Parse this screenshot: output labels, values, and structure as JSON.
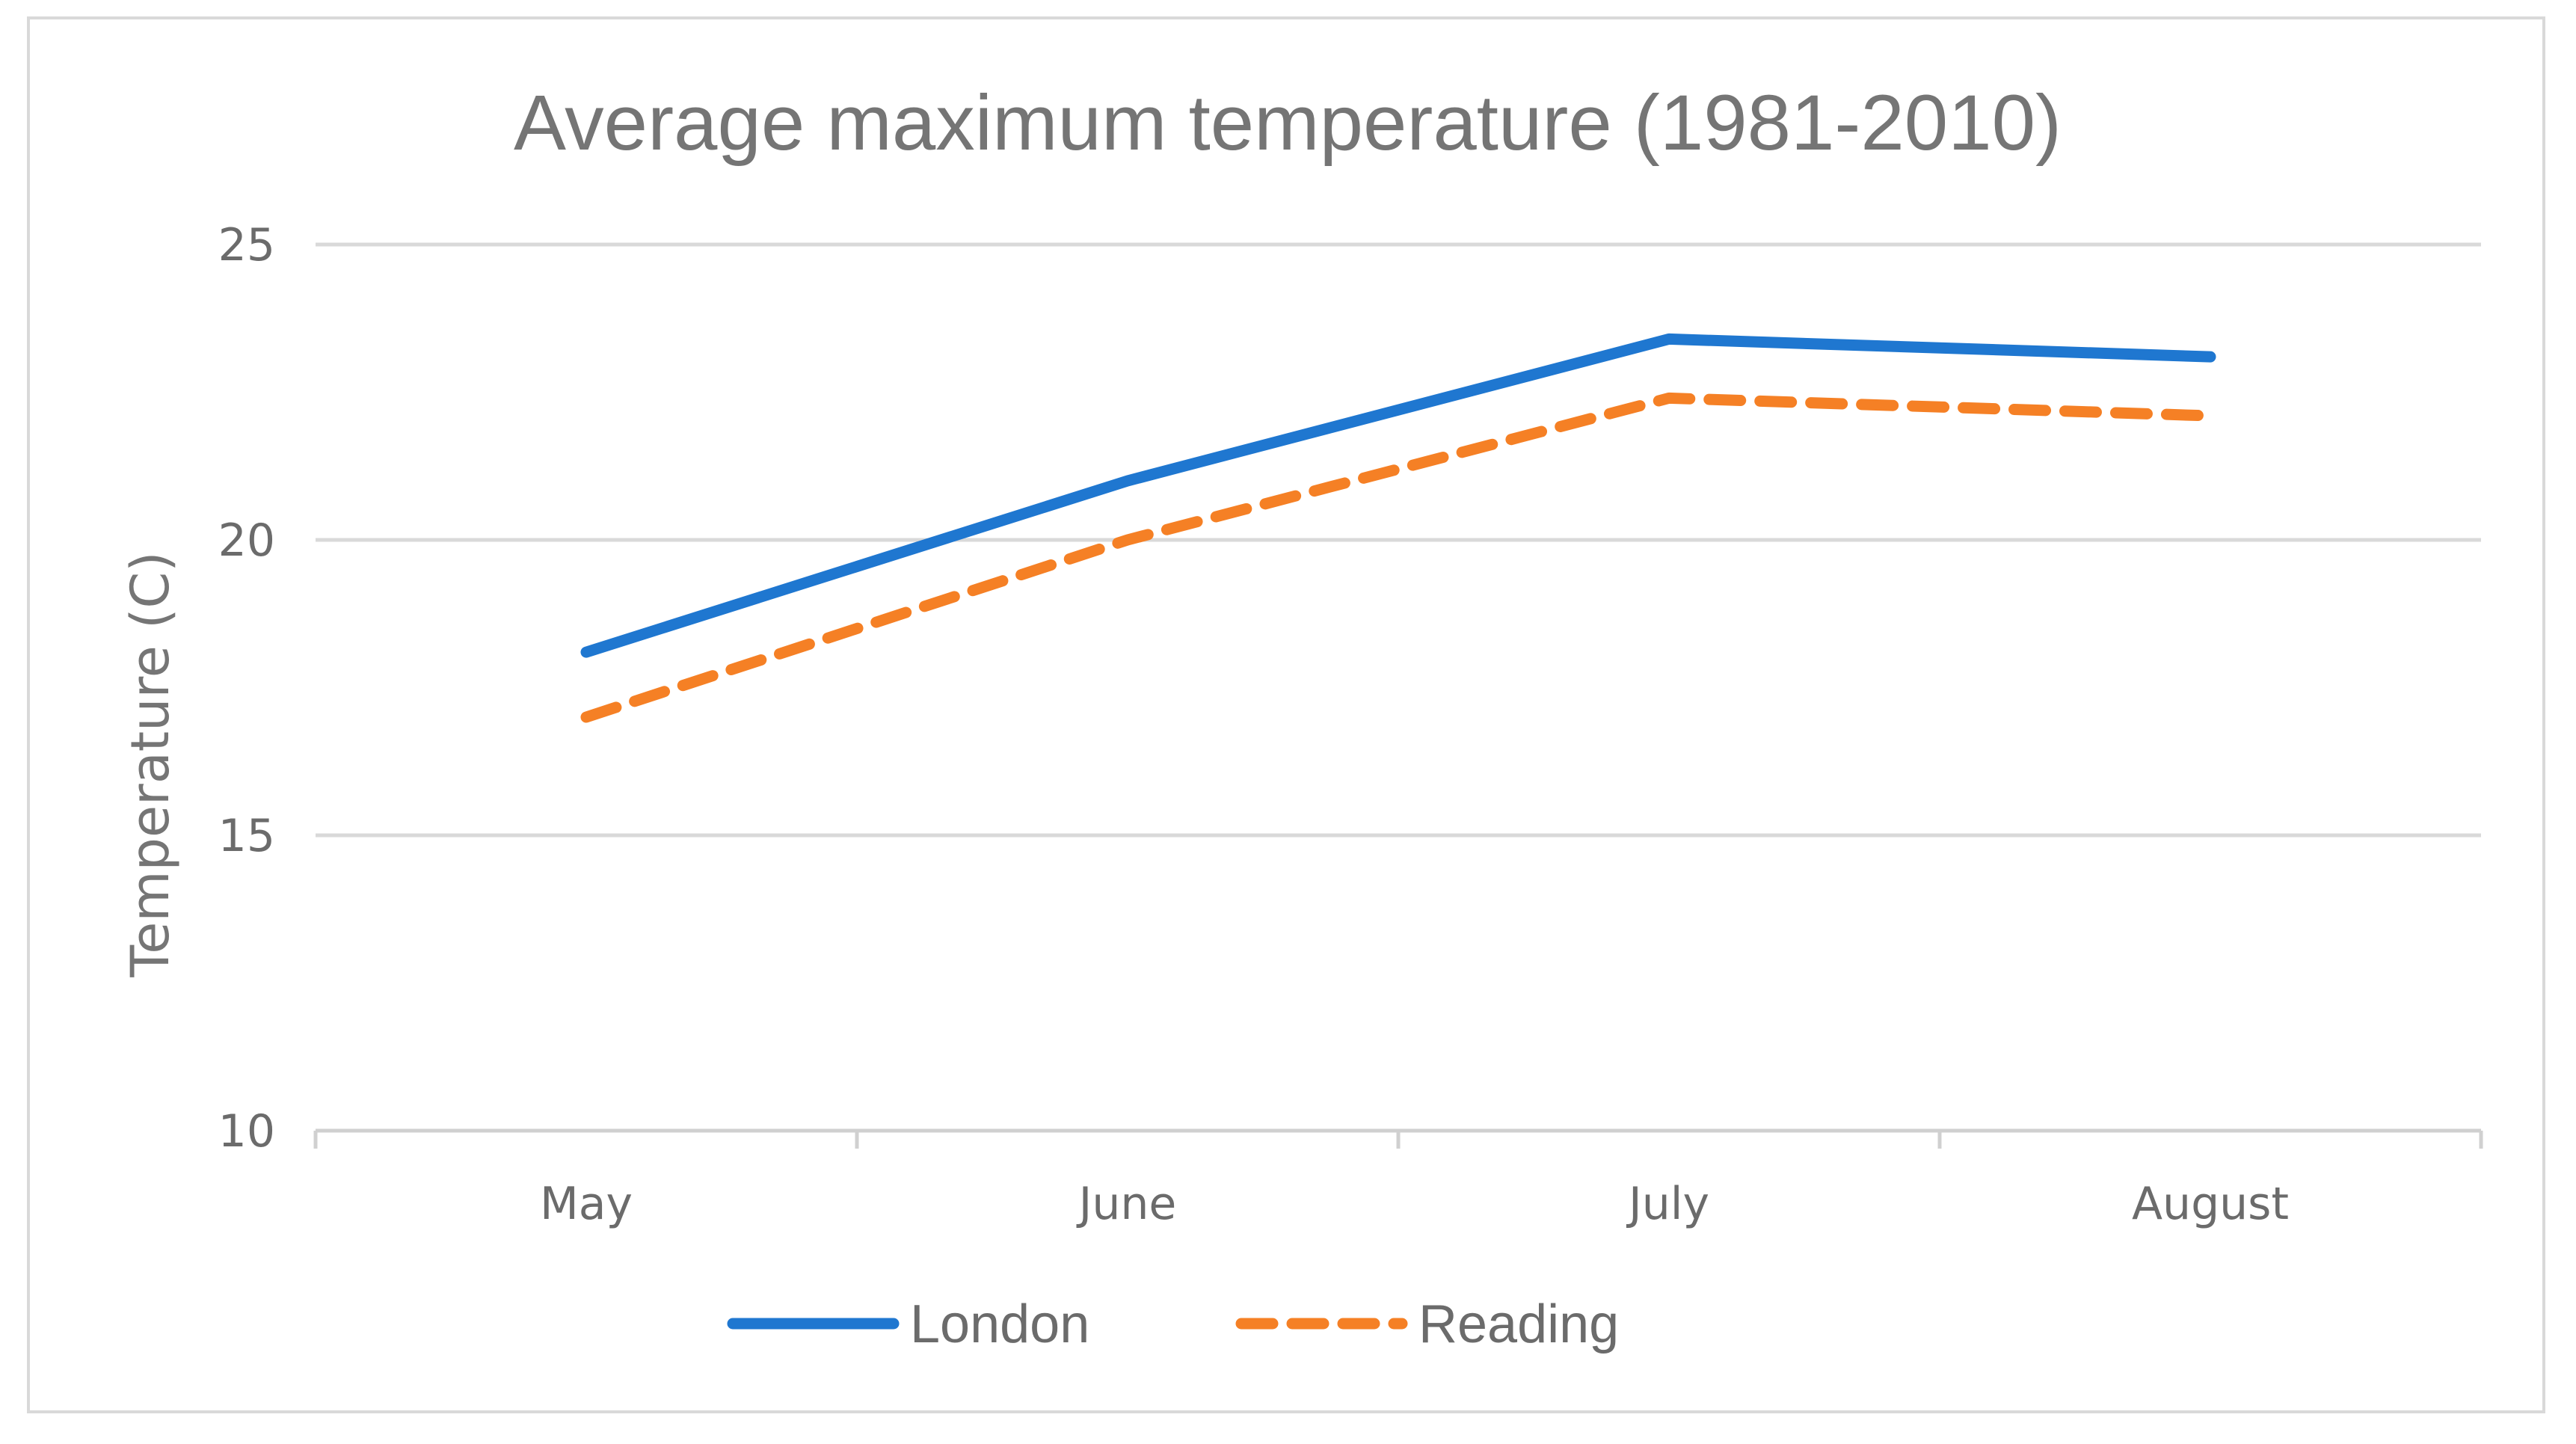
{
  "chart_data": {
    "type": "line",
    "title": "Average maximum temperature (1981-2010)",
    "xlabel": "",
    "ylabel": "Temperature (C)",
    "categories": [
      "May",
      "June",
      "July",
      "August"
    ],
    "ylim": [
      10,
      25
    ],
    "yticks": [
      10,
      15,
      20,
      25
    ],
    "grid": true,
    "legend_position": "bottom",
    "series": [
      {
        "name": "London",
        "values": [
          18.1,
          21.0,
          23.4,
          23.1
        ],
        "color": "#1f77d0",
        "style": "solid"
      },
      {
        "name": "Reading",
        "values": [
          17.0,
          20.0,
          22.4,
          22.1
        ],
        "color": "#f58025",
        "style": "dashed"
      }
    ]
  }
}
